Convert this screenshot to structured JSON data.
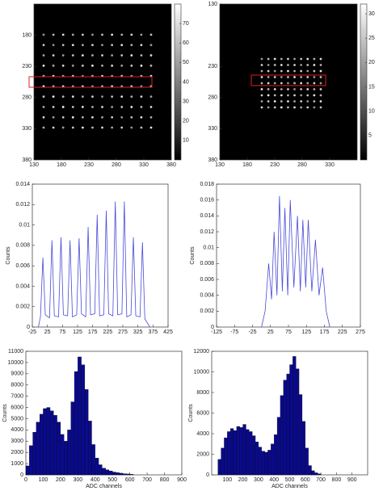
{
  "chart_data": [
    {
      "type": "image",
      "xlim": [
        130,
        380
      ],
      "ylim": [
        130,
        380
      ],
      "xticks": [
        130,
        180,
        230,
        280,
        330,
        380
      ],
      "yticks": [
        180,
        230,
        280,
        330,
        380
      ],
      "clim": [
        0,
        80
      ],
      "cticks": [
        10,
        20,
        30,
        40,
        50,
        60,
        70
      ]
    },
    {
      "type": "image",
      "xlim": [
        130,
        380
      ],
      "ylim": [
        130,
        380
      ],
      "xticks": [
        130,
        180,
        230,
        280,
        330
      ],
      "yticks": [
        130,
        230,
        280,
        330,
        380
      ],
      "clim": [
        0,
        32
      ],
      "cticks": [
        5,
        10,
        15,
        20,
        25,
        30
      ]
    },
    {
      "type": "line",
      "ylabel": "Counts",
      "xlim": [
        -25,
        425
      ],
      "xticks": [
        -25,
        25,
        75,
        125,
        175,
        225,
        275,
        325,
        375,
        425
      ],
      "ylim": [
        0,
        0.014
      ],
      "yticks": [
        0,
        0.002,
        0.004,
        0.006,
        0.008,
        0.01,
        0.012,
        0.014
      ],
      "color": "#4a4ad8",
      "x": [
        -5,
        2,
        10,
        18,
        32,
        40,
        48,
        62,
        70,
        78,
        92,
        100,
        108,
        122,
        130,
        138,
        152,
        160,
        168,
        182,
        190,
        198,
        212,
        220,
        228,
        242,
        250,
        258,
        272,
        280,
        288,
        302,
        310,
        318,
        332,
        340,
        348,
        365
      ],
      "values": [
        0,
        0.001,
        0.0068,
        0.0012,
        0.0009,
        0.0085,
        0.0011,
        0.001,
        0.0088,
        0.0012,
        0.0011,
        0.0085,
        0.001,
        0.0012,
        0.0087,
        0.0013,
        0.001,
        0.0098,
        0.0012,
        0.0013,
        0.011,
        0.0011,
        0.0012,
        0.0114,
        0.0013,
        0.0011,
        0.0123,
        0.0012,
        0.0013,
        0.0123,
        0.001,
        0.0012,
        0.0088,
        0.0011,
        0.001,
        0.0083,
        0.0008,
        0
      ]
    },
    {
      "type": "line",
      "ylabel": "Counts",
      "xlim": [
        -125,
        275
      ],
      "xticks": [
        -125,
        -75,
        -25,
        25,
        75,
        125,
        175,
        225,
        275
      ],
      "ylim": [
        0,
        0.018
      ],
      "yticks": [
        0,
        0.002,
        0.004,
        0.006,
        0.008,
        0.01,
        0.012,
        0.014,
        0.016,
        0.018
      ],
      "color": "#4a4ad8",
      "x": [
        0,
        10,
        20,
        28,
        35,
        43,
        50,
        58,
        65,
        73,
        80,
        90,
        100,
        108,
        115,
        123,
        130,
        140,
        150,
        160,
        170,
        180,
        190
      ],
      "values": [
        0,
        0.002,
        0.008,
        0.0035,
        0.012,
        0.004,
        0.0165,
        0.0045,
        0.015,
        0.004,
        0.016,
        0.005,
        0.014,
        0.0045,
        0.0135,
        0.005,
        0.0135,
        0.0045,
        0.011,
        0.004,
        0.0075,
        0.002,
        0
      ]
    },
    {
      "type": "histogram",
      "xlabel": "ADC channels",
      "ylabel": "Counts",
      "xlim": [
        0,
        900
      ],
      "xticks": [
        0,
        100,
        200,
        300,
        400,
        500,
        600,
        700,
        800,
        900
      ],
      "ylim": [
        0,
        11000
      ],
      "yticks": [
        0,
        1000,
        2000,
        3000,
        4000,
        5000,
        6000,
        7000,
        8000,
        9000,
        10000,
        11000
      ],
      "color": "#0a0a8c",
      "bins": [
        0,
        20,
        40,
        60,
        80,
        100,
        120,
        140,
        160,
        180,
        200,
        220,
        240,
        260,
        280,
        300,
        320,
        340,
        360,
        380,
        400,
        420,
        440,
        460,
        480,
        500,
        520,
        540,
        560,
        580,
        600,
        620,
        640,
        660,
        680,
        700,
        720,
        740,
        760,
        780,
        800,
        820,
        840,
        860,
        880,
        900
      ],
      "values": [
        800,
        2600,
        3800,
        4700,
        5400,
        5900,
        6000,
        5700,
        5300,
        4700,
        3600,
        3000,
        4000,
        6500,
        9200,
        10500,
        9800,
        7600,
        4800,
        2700,
        1500,
        900,
        600,
        450,
        350,
        250,
        200,
        150,
        100,
        80,
        50,
        0,
        0,
        0,
        0,
        0,
        0,
        0,
        0,
        0,
        0,
        0,
        0,
        0,
        0
      ]
    },
    {
      "type": "histogram",
      "xlabel": "ADC channels",
      "ylabel": "Counts",
      "xlim": [
        0,
        1000
      ],
      "xticks": [
        100,
        200,
        300,
        400,
        500,
        600,
        700,
        800,
        900
      ],
      "ylim": [
        0,
        12000
      ],
      "yticks": [
        0,
        2000,
        4000,
        6000,
        8000,
        10000,
        12000
      ],
      "color": "#0a0a8c",
      "bins": [
        0,
        20,
        40,
        60,
        80,
        100,
        120,
        140,
        160,
        180,
        200,
        220,
        240,
        260,
        280,
        300,
        320,
        340,
        360,
        380,
        400,
        420,
        440,
        460,
        480,
        500,
        520,
        540,
        560,
        580,
        600,
        620,
        640,
        660,
        680,
        700,
        720,
        740,
        760,
        780,
        800,
        820,
        840,
        860,
        880,
        900
      ],
      "values": [
        0,
        0,
        1500,
        2600,
        3600,
        4200,
        4500,
        4300,
        4700,
        4600,
        4900,
        4400,
        4200,
        3800,
        3200,
        2700,
        2300,
        2200,
        2400,
        3000,
        3900,
        5600,
        7700,
        9200,
        9800,
        10700,
        11500,
        10300,
        7800,
        5200,
        2600,
        900,
        400,
        200,
        100,
        0,
        0,
        0,
        0,
        0,
        0,
        0,
        0,
        0,
        0
      ]
    }
  ]
}
